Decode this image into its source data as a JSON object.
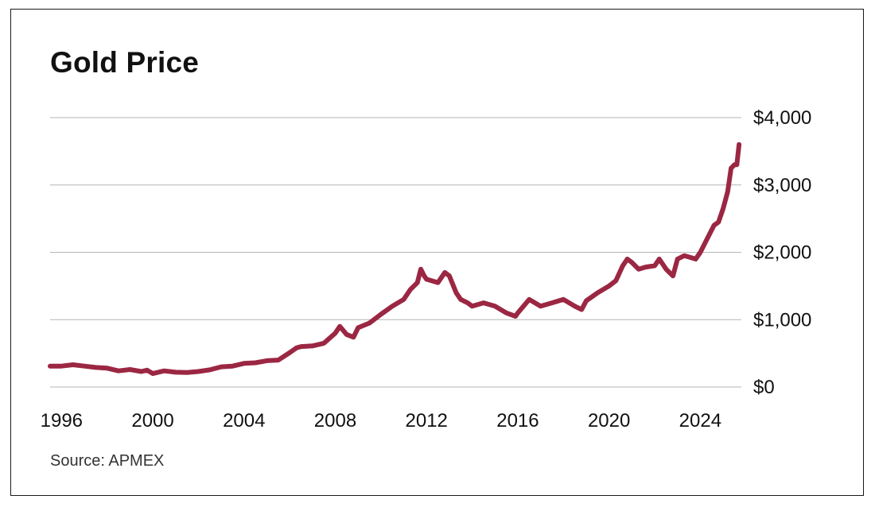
{
  "chart_data": {
    "type": "line",
    "title": "Gold Price",
    "source": "Source: APMEX",
    "xlabel": "",
    "ylabel": "",
    "xlim": [
      1995.5,
      2025.8
    ],
    "ylim": [
      0,
      4000
    ],
    "grid": true,
    "y_axis_side": "right",
    "x_ticks": [
      1996,
      2000,
      2004,
      2008,
      2012,
      2016,
      2020,
      2024
    ],
    "x_tick_labels": [
      "1996",
      "2000",
      "2004",
      "2008",
      "2012",
      "2016",
      "2020",
      "2024"
    ],
    "y_ticks": [
      0,
      1000,
      2000,
      3000,
      4000
    ],
    "y_tick_labels": [
      "$0",
      "$1,000",
      "$2,000",
      "$3,000",
      "$4,000"
    ],
    "colors": {
      "line": "#9b2743",
      "grid": "#b5b5b5",
      "axis_text": "#111111"
    },
    "series": [
      {
        "name": "Gold Price",
        "x": [
          1995.5,
          1996.0,
          1996.5,
          1997.0,
          1997.5,
          1998.0,
          1998.5,
          1999.0,
          1999.5,
          1999.75,
          2000.0,
          2000.5,
          2001.0,
          2001.5,
          2002.0,
          2002.5,
          2003.0,
          2003.5,
          2004.0,
          2004.5,
          2005.0,
          2005.5,
          2006.0,
          2006.3,
          2006.5,
          2007.0,
          2007.5,
          2008.0,
          2008.2,
          2008.5,
          2008.8,
          2009.0,
          2009.5,
          2010.0,
          2010.5,
          2011.0,
          2011.3,
          2011.6,
          2011.75,
          2011.9,
          2012.0,
          2012.5,
          2012.8,
          2013.0,
          2013.3,
          2013.5,
          2013.8,
          2014.0,
          2014.5,
          2015.0,
          2015.5,
          2015.9,
          2016.0,
          2016.5,
          2017.0,
          2017.5,
          2018.0,
          2018.5,
          2018.8,
          2019.0,
          2019.5,
          2019.8,
          2020.0,
          2020.3,
          2020.6,
          2020.8,
          2021.0,
          2021.3,
          2021.6,
          2022.0,
          2022.2,
          2022.5,
          2022.8,
          2023.0,
          2023.3,
          2023.6,
          2023.8,
          2024.0,
          2024.3,
          2024.6,
          2024.8,
          2025.0,
          2025.2,
          2025.35,
          2025.5,
          2025.6,
          2025.7
        ],
        "values": [
          310,
          310,
          330,
          310,
          290,
          280,
          240,
          260,
          230,
          250,
          200,
          240,
          220,
          215,
          230,
          255,
          300,
          310,
          350,
          360,
          390,
          400,
          510,
          580,
          600,
          610,
          650,
          800,
          900,
          780,
          740,
          880,
          950,
          1080,
          1200,
          1300,
          1450,
          1550,
          1750,
          1650,
          1600,
          1550,
          1700,
          1650,
          1400,
          1300,
          1250,
          1200,
          1250,
          1200,
          1100,
          1050,
          1100,
          1300,
          1200,
          1250,
          1300,
          1200,
          1150,
          1280,
          1400,
          1460,
          1500,
          1580,
          1800,
          1900,
          1850,
          1750,
          1780,
          1800,
          1900,
          1750,
          1650,
          1900,
          1950,
          1920,
          1900,
          2000,
          2200,
          2400,
          2450,
          2650,
          2900,
          3250,
          3300,
          3300,
          3600
        ]
      }
    ]
  }
}
